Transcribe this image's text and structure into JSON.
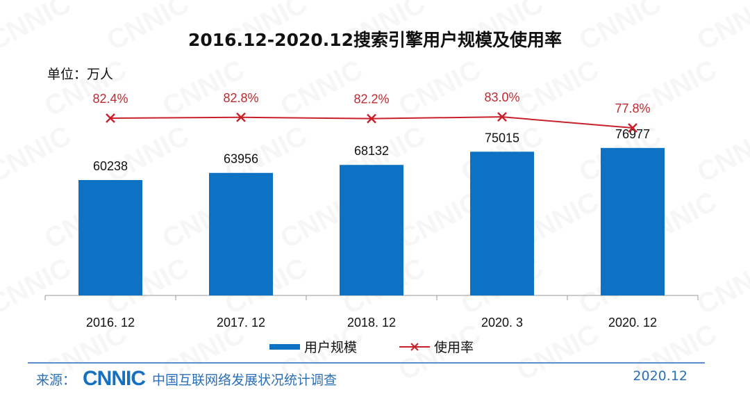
{
  "watermark": "CNNIC",
  "title": "2016.12-2020.12搜索引擎用户规模及使用率",
  "unit_label": "单位：万人",
  "footer": {
    "source_label": "来源：",
    "logo_text": "CNNIC",
    "source_name": "中国互联网络发展状况统计调查",
    "date": "2020.12"
  },
  "colors": {
    "bar": "#0e72c4",
    "line": "#c9212b",
    "line_label": "#c0282e",
    "footer": "#2a6fb8"
  },
  "chart_data": {
    "type": "bar+line",
    "title": "2016.12-2020.12搜索引擎用户规模及使用率",
    "ylabel": "单位：万人",
    "categories": [
      "2016. 12",
      "2017. 12",
      "2018. 12",
      "2020. 3",
      "2020. 12"
    ],
    "ylim": [
      0,
      100000
    ],
    "grid": false,
    "legend_position": "bottom",
    "series": [
      {
        "name": "用户规模",
        "type": "bar",
        "values": [
          60238,
          63956,
          68132,
          75015,
          76977
        ],
        "labels": [
          "60238",
          "63956",
          "68132",
          "75015",
          "76977"
        ]
      },
      {
        "name": "使用率",
        "type": "line",
        "marker": "x",
        "values": [
          82.4,
          82.8,
          82.2,
          83.0,
          77.8
        ],
        "labels": [
          "82.4%",
          "82.8%",
          "82.2%",
          "83.0%",
          "77.8%"
        ]
      }
    ]
  }
}
